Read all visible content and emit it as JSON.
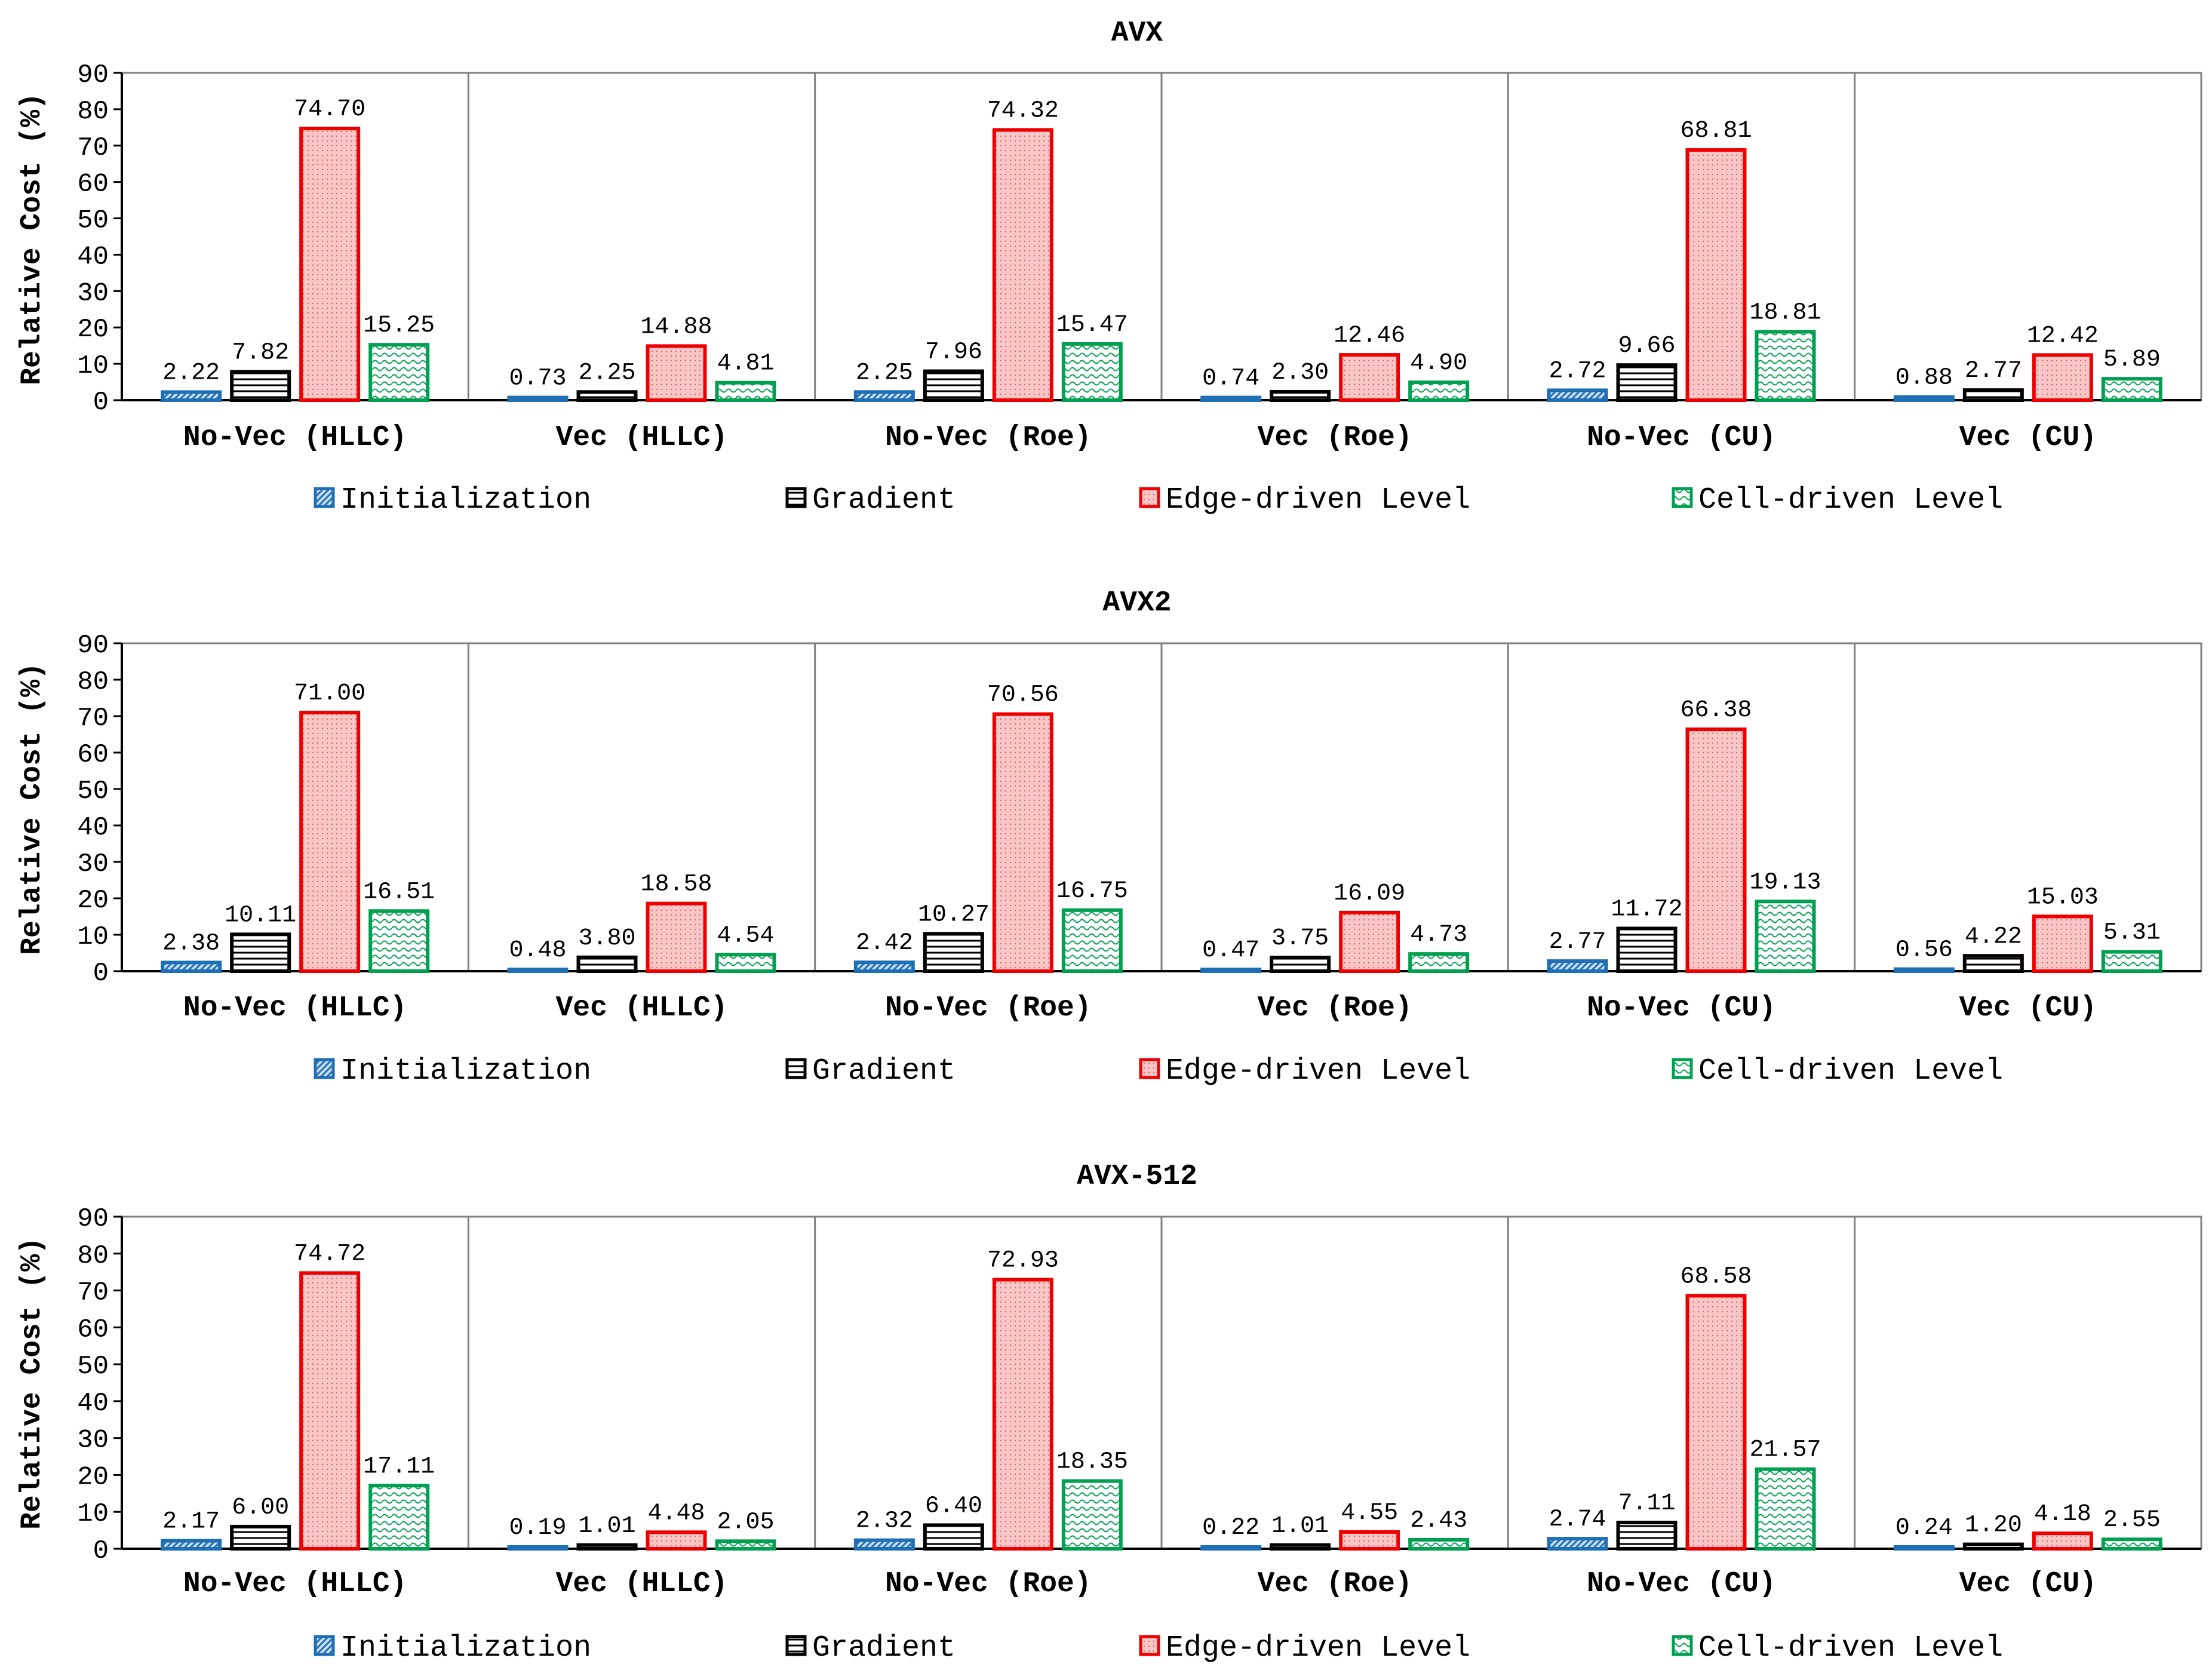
{
  "chart_data": [
    {
      "type": "bar",
      "title": "AVX",
      "ylabel": "Relative Cost (%)",
      "xlabel": "",
      "ylim": [
        0,
        90
      ],
      "yticks": [
        0,
        10,
        20,
        30,
        40,
        50,
        60,
        70,
        80,
        90
      ],
      "categories": [
        "No-Vec (HLLC)",
        "Vec (HLLC)",
        "No-Vec (Roe)",
        "Vec (Roe)",
        "No-Vec (CU)",
        "Vec (CU)"
      ],
      "series": [
        {
          "name": "Initialization",
          "values": [
            2.22,
            0.73,
            2.25,
            0.74,
            2.72,
            0.88
          ],
          "labels": [
            "2.22",
            "0.73",
            "2.25",
            "0.74",
            "2.72",
            "0.88"
          ]
        },
        {
          "name": "Gradient",
          "values": [
            7.82,
            2.25,
            7.96,
            2.3,
            9.66,
            2.77
          ],
          "labels": [
            "7.82",
            "2.25",
            "7.96",
            "2.30",
            "9.66",
            "2.77"
          ]
        },
        {
          "name": "Edge-driven Level",
          "values": [
            74.7,
            14.88,
            74.32,
            12.46,
            68.81,
            12.42
          ],
          "labels": [
            "74.70",
            "14.88",
            "74.32",
            "12.46",
            "68.81",
            "12.42"
          ]
        },
        {
          "name": "Cell-driven Level",
          "values": [
            15.25,
            4.81,
            15.47,
            4.9,
            18.81,
            5.89
          ],
          "labels": [
            "15.25",
            "4.81",
            "15.47",
            "4.90",
            "18.81",
            "5.89"
          ]
        }
      ],
      "legend_position": "bottom"
    },
    {
      "type": "bar",
      "title": "AVX2",
      "ylabel": "Relative Cost (%)",
      "xlabel": "",
      "ylim": [
        0,
        90
      ],
      "yticks": [
        0,
        10,
        20,
        30,
        40,
        50,
        60,
        70,
        80,
        90
      ],
      "categories": [
        "No-Vec (HLLC)",
        "Vec (HLLC)",
        "No-Vec (Roe)",
        "Vec (Roe)",
        "No-Vec (CU)",
        "Vec (CU)"
      ],
      "series": [
        {
          "name": "Initialization",
          "values": [
            2.38,
            0.48,
            2.42,
            0.47,
            2.77,
            0.56
          ],
          "labels": [
            "2.38",
            "0.48",
            "2.42",
            "0.47",
            "2.77",
            "0.56"
          ]
        },
        {
          "name": "Gradient",
          "values": [
            10.11,
            3.8,
            10.27,
            3.75,
            11.72,
            4.22
          ],
          "labels": [
            "10.11",
            "3.80",
            "10.27",
            "3.75",
            "11.72",
            "4.22"
          ]
        },
        {
          "name": "Edge-driven Level",
          "values": [
            71.0,
            18.58,
            70.56,
            16.09,
            66.38,
            15.03
          ],
          "labels": [
            "71.00",
            "18.58",
            "70.56",
            "16.09",
            "66.38",
            "15.03"
          ]
        },
        {
          "name": "Cell-driven Level",
          "values": [
            16.51,
            4.54,
            16.75,
            4.73,
            19.13,
            5.31
          ],
          "labels": [
            "16.51",
            "4.54",
            "16.75",
            "4.73",
            "19.13",
            "5.31"
          ]
        }
      ],
      "legend_position": "bottom"
    },
    {
      "type": "bar",
      "title": "AVX-512",
      "ylabel": "Relative Cost (%)",
      "xlabel": "",
      "ylim": [
        0,
        90
      ],
      "yticks": [
        0,
        10,
        20,
        30,
        40,
        50,
        60,
        70,
        80,
        90
      ],
      "categories": [
        "No-Vec (HLLC)",
        "Vec (HLLC)",
        "No-Vec (Roe)",
        "Vec (Roe)",
        "No-Vec (CU)",
        "Vec (CU)"
      ],
      "series": [
        {
          "name": "Initialization",
          "values": [
            2.17,
            0.19,
            2.32,
            0.22,
            2.74,
            0.24
          ],
          "labels": [
            "2.17",
            "0.19",
            "2.32",
            "0.22",
            "2.74",
            "0.24"
          ]
        },
        {
          "name": "Gradient",
          "values": [
            6.0,
            1.01,
            6.4,
            1.01,
            7.11,
            1.2
          ],
          "labels": [
            "6.00",
            "1.01",
            "6.40",
            "1.01",
            "7.11",
            "1.20"
          ]
        },
        {
          "name": "Edge-driven Level",
          "values": [
            74.72,
            4.48,
            72.93,
            4.55,
            68.58,
            4.18
          ],
          "labels": [
            "74.72",
            "4.48",
            "72.93",
            "4.55",
            "68.58",
            "4.18"
          ]
        },
        {
          "name": "Cell-driven Level",
          "values": [
            17.11,
            2.05,
            18.35,
            2.43,
            21.57,
            2.55
          ],
          "labels": [
            "17.11",
            "2.05",
            "18.35",
            "2.43",
            "21.57",
            "2.55"
          ]
        }
      ],
      "legend_position": "bottom"
    }
  ],
  "series_colors": {
    "Initialization": {
      "stroke": "#1f6fb5",
      "fill": "#c9ddf0",
      "pattern": "diagonal-hatch"
    },
    "Gradient": {
      "stroke": "#000000",
      "fill": "#ffffff",
      "pattern": "horizontal-lines"
    },
    "Edge-driven Level": {
      "stroke": "#ee0000",
      "fill": "#f7c6c6",
      "pattern": "dotted-grid"
    },
    "Cell-driven Level": {
      "stroke": "#00a050",
      "fill": "#ffffff",
      "pattern": "wave"
    }
  }
}
